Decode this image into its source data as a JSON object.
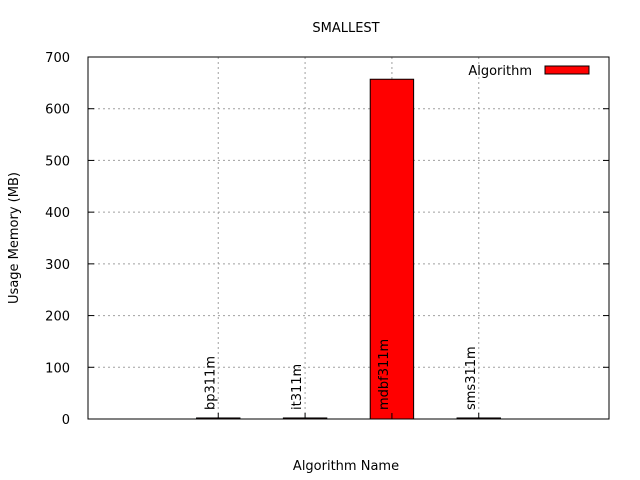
{
  "chart_data": {
    "type": "bar",
    "title": "SMALLEST",
    "xlabel": "Algorithm Name",
    "ylabel": "Usage Memory (MB)",
    "ylim": [
      0,
      700
    ],
    "yticks": [
      0,
      100,
      200,
      300,
      400,
      500,
      600,
      700
    ],
    "grid": true,
    "legend": {
      "position": "top-right",
      "entries": [
        "Algorithm"
      ]
    },
    "categories": [
      "bp311m",
      "it311m",
      "mdbf311m",
      "sms311m"
    ],
    "series": [
      {
        "name": "Algorithm",
        "values": [
          2,
          2,
          657,
          2
        ]
      }
    ],
    "colors": {
      "bar": "#ff0000",
      "bar_stroke": "#000000",
      "grid": "#a0a0a0"
    }
  }
}
